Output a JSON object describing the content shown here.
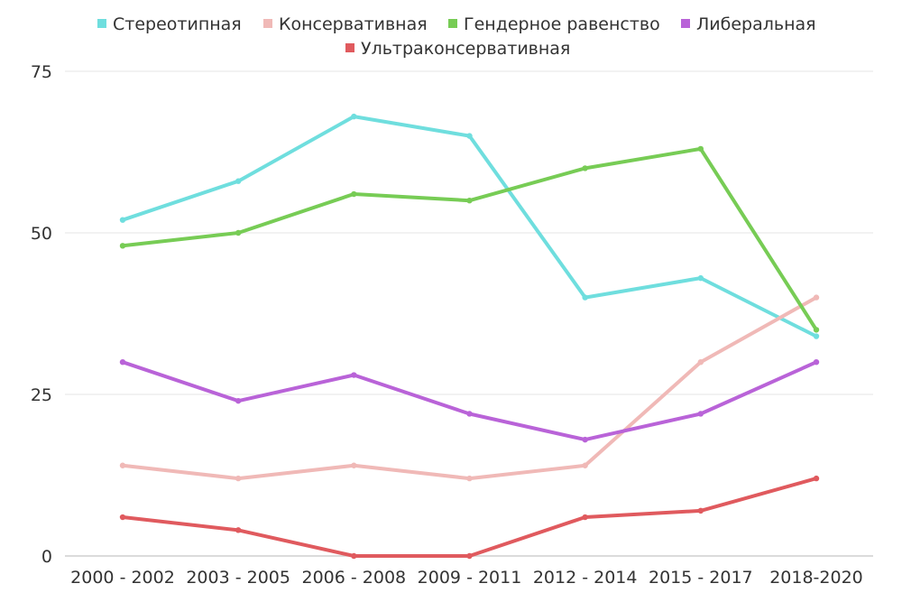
{
  "chart_data": {
    "type": "line",
    "categories": [
      "2000 - 2002",
      "2003 - 2005",
      "2006 - 2008",
      "2009 - 2011",
      "2012 - 2014",
      "2015 - 2017",
      "2018-2020"
    ],
    "y_ticks": [
      "0",
      "25",
      "50",
      "75"
    ],
    "ylim": [
      0,
      75
    ],
    "grid": true,
    "legend_position": "top",
    "series": [
      {
        "name": "Стереотипная",
        "color": "#6fdede",
        "values": [
          52,
          58,
          68,
          65,
          40,
          43,
          34
        ]
      },
      {
        "name": "Консервативная",
        "color": "#f0b9b7",
        "values": [
          14,
          12,
          14,
          12,
          14,
          30,
          40
        ]
      },
      {
        "name": "Гендерное равенство",
        "color": "#77cc55",
        "values": [
          48,
          50,
          56,
          55,
          60,
          63,
          35
        ]
      },
      {
        "name": "Либеральная",
        "color": "#b963d8",
        "values": [
          30,
          24,
          28,
          22,
          18,
          22,
          30
        ]
      },
      {
        "name": "Ультраконсервативная",
        "color": "#e05a5e",
        "values": [
          6,
          4,
          0,
          0,
          6,
          7,
          12
        ]
      }
    ]
  }
}
